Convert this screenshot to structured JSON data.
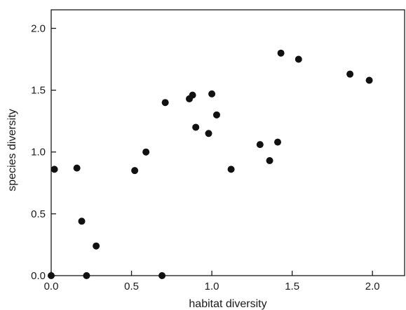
{
  "chart_data": {
    "type": "scatter",
    "title": "",
    "xlabel": "habitat diversity",
    "ylabel": "species diversity",
    "xlim": [
      0.0,
      2.2
    ],
    "ylim": [
      0.0,
      2.15
    ],
    "x_ticks": [
      0.0,
      0.5,
      1.0,
      1.5,
      2.0
    ],
    "y_ticks": [
      0.0,
      0.5,
      1.0,
      1.5,
      2.0
    ],
    "x_tick_labels": [
      "0.0",
      "0.5",
      "1.0",
      "1.5",
      "2.0"
    ],
    "y_tick_labels": [
      "0.0",
      "0.5",
      "1.0",
      "1.5",
      "2.0"
    ],
    "grid": false,
    "legend": "none",
    "marker_color": "#111111",
    "points": [
      {
        "x": 0.0,
        "y": 0.0
      },
      {
        "x": 0.02,
        "y": 0.86
      },
      {
        "x": 0.16,
        "y": 0.87
      },
      {
        "x": 0.19,
        "y": 0.44
      },
      {
        "x": 0.22,
        "y": 0.0
      },
      {
        "x": 0.28,
        "y": 0.24
      },
      {
        "x": 0.52,
        "y": 0.85
      },
      {
        "x": 0.59,
        "y": 1.0
      },
      {
        "x": 0.69,
        "y": 0.0
      },
      {
        "x": 0.71,
        "y": 1.4
      },
      {
        "x": 0.86,
        "y": 1.43
      },
      {
        "x": 0.88,
        "y": 1.46
      },
      {
        "x": 0.9,
        "y": 1.2
      },
      {
        "x": 0.98,
        "y": 1.15
      },
      {
        "x": 1.0,
        "y": 1.47
      },
      {
        "x": 1.03,
        "y": 1.3
      },
      {
        "x": 1.12,
        "y": 0.86
      },
      {
        "x": 1.3,
        "y": 1.06
      },
      {
        "x": 1.36,
        "y": 0.93
      },
      {
        "x": 1.41,
        "y": 1.08
      },
      {
        "x": 1.43,
        "y": 1.8
      },
      {
        "x": 1.54,
        "y": 1.75
      },
      {
        "x": 1.86,
        "y": 1.63
      },
      {
        "x": 1.98,
        "y": 1.58
      }
    ]
  }
}
